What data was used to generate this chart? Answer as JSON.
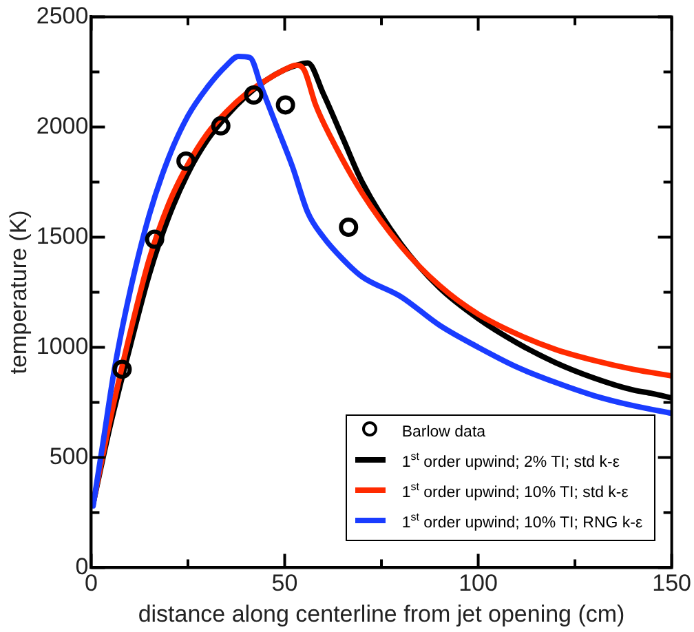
{
  "chart_data": {
    "type": "line",
    "xlabel": "distance along centerline from jet opening (cm)",
    "ylabel": "temperature (K)",
    "xlim": [
      0,
      150
    ],
    "xticks": [
      0,
      {
        "value": 25,
        "label": null
      },
      50,
      {
        "value": 75,
        "label": null
      },
      100,
      {
        "value": 125,
        "label": null
      },
      150
    ],
    "ylim": [
      0,
      2500
    ],
    "yticks": [
      0,
      {
        "value": 250,
        "label": null
      },
      500,
      {
        "value": 750,
        "label": null
      },
      1000,
      {
        "value": 1250,
        "label": null
      },
      1500,
      {
        "value": 1750,
        "label": null
      },
      2000,
      {
        "value": 2250,
        "label": null
      },
      2500
    ],
    "grid": false,
    "legend": "bottom right",
    "line_style": "solid",
    "series": [
      {
        "name": "Barlow data",
        "type": "scatter",
        "marker": "circle",
        "color": "#000000",
        "x": [
          8,
          16.4,
          24.5,
          33.5,
          42,
          50.2,
          66.5
        ],
        "values": [
          900,
          1490,
          1845,
          2005,
          2145,
          2100,
          1545
        ]
      },
      {
        "name": "1$^{st}$ order upwind; 2% TI; std k-ε",
        "type": "line",
        "marker": "none",
        "color": "#000000",
        "x": [
          0.5,
          5,
          10,
          15,
          20,
          25,
          30,
          35,
          40,
          45,
          50,
          53,
          56,
          60,
          65,
          70,
          80,
          90,
          100,
          110,
          120,
          130,
          140,
          145,
          150
        ],
        "values": [
          290,
          650,
          1000,
          1330,
          1590,
          1790,
          1940,
          2050,
          2140,
          2210,
          2260,
          2280,
          2290,
          2150,
          1950,
          1750,
          1470,
          1270,
          1130,
          1020,
          930,
          860,
          806,
          790,
          770
        ]
      },
      {
        "name": "1$^{st}$ order upwind; 10% TI; std k-ε",
        "type": "line",
        "marker": "none",
        "color": "#ff2a00",
        "x": [
          0.5,
          5,
          10,
          15,
          20,
          25,
          30,
          35,
          40,
          45,
          50,
          53,
          55,
          58,
          62,
          70,
          80,
          90,
          100,
          110,
          120,
          130,
          140,
          150
        ],
        "values": [
          290,
          680,
          1060,
          1400,
          1650,
          1830,
          1970,
          2070,
          2150,
          2210,
          2260,
          2280,
          2260,
          2100,
          1950,
          1700,
          1460,
          1280,
          1150,
          1060,
          990,
          940,
          900,
          870
        ]
      },
      {
        "name": "1$^{st}$ order upwind; 10% TI; RNG k-ε",
        "type": "line",
        "marker": "none",
        "color": "#1a3cff",
        "x": [
          0.5,
          3,
          6,
          10,
          15,
          20,
          25,
          30,
          35,
          38,
          41,
          44,
          48,
          52,
          56,
          60,
          65,
          70,
          80,
          90,
          100,
          110,
          120,
          130,
          140,
          150
        ],
        "values": [
          280,
          560,
          900,
          1250,
          1600,
          1860,
          2050,
          2180,
          2280,
          2320,
          2315,
          2180,
          2000,
          1820,
          1610,
          1500,
          1400,
          1320,
          1230,
          1100,
          1000,
          910,
          840,
          780,
          735,
          700
        ]
      }
    ]
  }
}
